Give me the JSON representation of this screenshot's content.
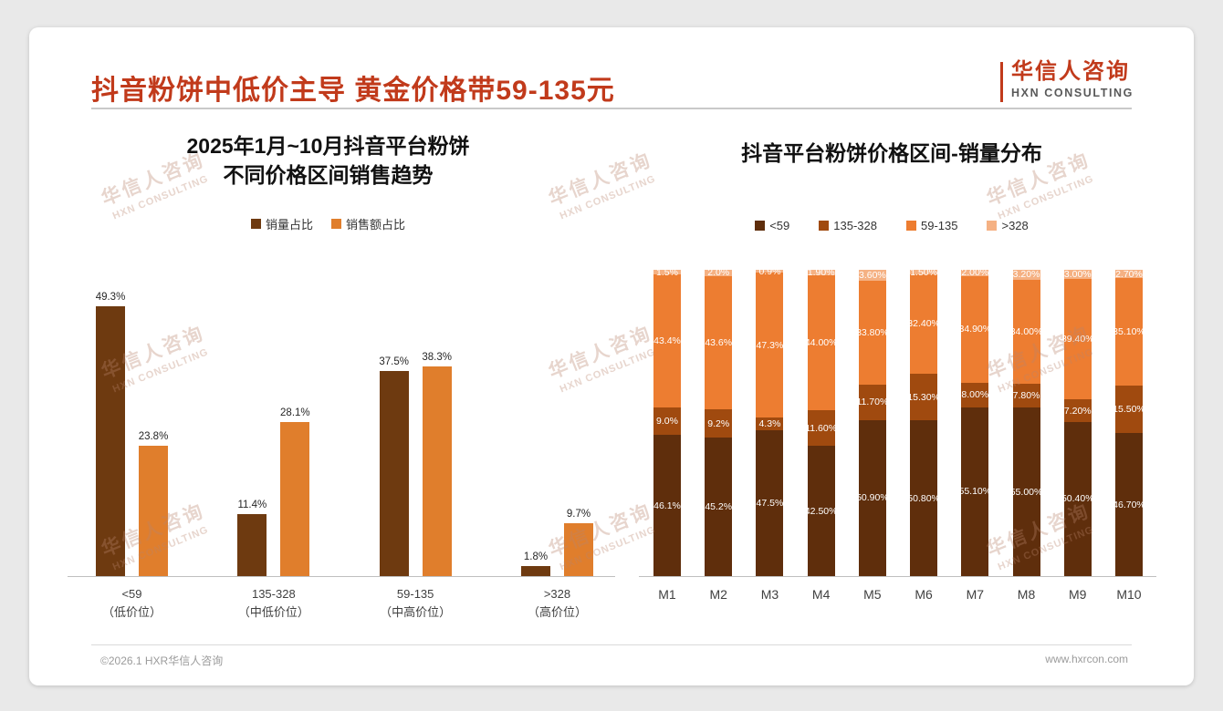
{
  "page": {
    "title": "抖音粉饼中低价主导 黄金价格带59-135元",
    "logo": {
      "cn": "华信人咨询",
      "en": "HXN CONSULTING"
    },
    "footer": {
      "left": "©2026.1 HXR华信人咨询",
      "right": "www.hxrcon.com"
    },
    "watermark": {
      "cn": "华信人咨询",
      "en": "HXN CONSULTING"
    }
  },
  "colors": {
    "accent": "#C13A1B",
    "page_background": "#E9E9E9",
    "card_background": "#FFFFFF",
    "axis_line": "#BFBFBF"
  },
  "chart_data": [
    {
      "type": "bar",
      "title": "2025年1月~10月抖音平台粉饼 不同价格区间销售趋势",
      "title_lines": [
        "2025年1月~10月抖音平台粉饼",
        "不同价格区间销售趋势"
      ],
      "categories": [
        "<59",
        "135-328",
        "59-135",
        ">328"
      ],
      "category_sublabels": [
        "（低价位）",
        "（中低价位）",
        "（中高价位）",
        "（高价位）"
      ],
      "xlabel": "",
      "ylabel": "",
      "ylim": [
        0,
        50
      ],
      "grid": false,
      "legend_position": "top",
      "series": [
        {
          "name": "销量占比",
          "color": "#6E3A10",
          "values": [
            49.3,
            11.4,
            37.5,
            1.8
          ],
          "labels": [
            "49.3%",
            "11.4%",
            "37.5%",
            "1.8%"
          ]
        },
        {
          "name": "销售额占比",
          "color": "#E07E2C",
          "values": [
            23.8,
            28.1,
            38.3,
            9.7
          ],
          "labels": [
            "23.8%",
            "28.1%",
            "38.3%",
            "9.7%"
          ]
        }
      ]
    },
    {
      "type": "bar",
      "subtype": "stacked-100",
      "title": "抖音平台粉饼价格区间-销量分布",
      "categories": [
        "M1",
        "M2",
        "M3",
        "M4",
        "M5",
        "M6",
        "M7",
        "M8",
        "M9",
        "M10"
      ],
      "xlabel": "",
      "ylabel": "",
      "ylim": [
        0,
        100
      ],
      "grid": false,
      "legend_position": "top",
      "series": [
        {
          "name": "<59",
          "color": "#5F2E0C",
          "values": [
            46.1,
            45.2,
            47.5,
            42.5,
            50.9,
            50.8,
            55.1,
            55.0,
            50.4,
            46.7
          ],
          "labels": [
            "46.1%",
            "45.2%",
            "47.5%",
            "42.50%",
            "50.90%",
            "50.80%",
            "55.10%",
            "55.00%",
            "50.40%",
            "46.70%"
          ]
        },
        {
          "name": "135-328",
          "color": "#A04A0F",
          "values": [
            9.0,
            9.2,
            4.3,
            11.6,
            11.7,
            15.3,
            8.0,
            7.8,
            7.2,
            15.5
          ],
          "labels": [
            "9.0%",
            "9.2%",
            "4.3%",
            "11.60%",
            "11.70%",
            "15.30%",
            "8.00%",
            "7.80%",
            "7.20%",
            "15.50%"
          ]
        },
        {
          "name": "59-135",
          "color": "#ED7D31",
          "values": [
            43.4,
            43.6,
            47.3,
            44.0,
            33.8,
            32.4,
            34.9,
            34.0,
            39.4,
            35.1
          ],
          "labels": [
            "43.4%",
            "43.6%",
            "47.3%",
            "44.00%",
            "33.80%",
            "32.40%",
            "34.90%",
            "34.00%",
            "39.40%",
            "35.10%"
          ]
        },
        {
          "name": ">328",
          "color": "#F5B183",
          "values": [
            1.5,
            2.0,
            0.9,
            1.9,
            3.6,
            1.5,
            2.0,
            3.2,
            3.0,
            2.7
          ],
          "labels": [
            "1.5%",
            "2.0%",
            "0.9%",
            "1.90%",
            "3.60%",
            "1.50%",
            "2.00%",
            "3.20%",
            "3.00%",
            "2.70%"
          ]
        }
      ]
    }
  ]
}
